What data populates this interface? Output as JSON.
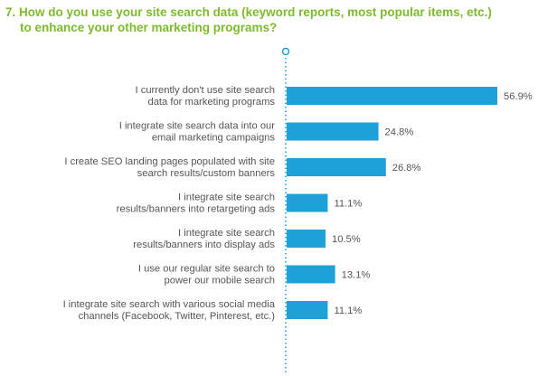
{
  "question": {
    "line1": "7. How do you use your site search data (keyword reports, most popular items, etc.)",
    "line2": "to enhance your other marketing programs?"
  },
  "colors": {
    "bar": "#1ea1d9",
    "axis": "#1ea1d9",
    "title": "#7dbb2b",
    "text": "#555555"
  },
  "chart_data": {
    "type": "bar",
    "orientation": "horizontal",
    "unit": "%",
    "xlim": [
      0,
      60
    ],
    "grid": false,
    "legend": "none",
    "categories": [
      [
        "I currently don't use site search",
        "data for marketing programs"
      ],
      [
        "I integrate site search data into our",
        "email marketing campaigns"
      ],
      [
        "I create SEO landing pages populated with site",
        "search results/custom banners"
      ],
      [
        "I integrate site search",
        "results/banners into retargeting ads"
      ],
      [
        "I integrate site search",
        "results/banners into display ads"
      ],
      [
        "I use our regular site search to",
        "power our mobile search"
      ],
      [
        "I integrate site search with various social media",
        "channels (Facebook, Twitter, Pinterest, etc.)"
      ]
    ],
    "values": [
      56.9,
      24.8,
      26.8,
      11.1,
      10.5,
      13.1,
      11.1
    ],
    "value_labels": [
      "56.9%",
      "24.8%",
      "26.8%",
      "11.1%",
      "10.5%",
      "13.1%",
      "11.1%"
    ]
  }
}
